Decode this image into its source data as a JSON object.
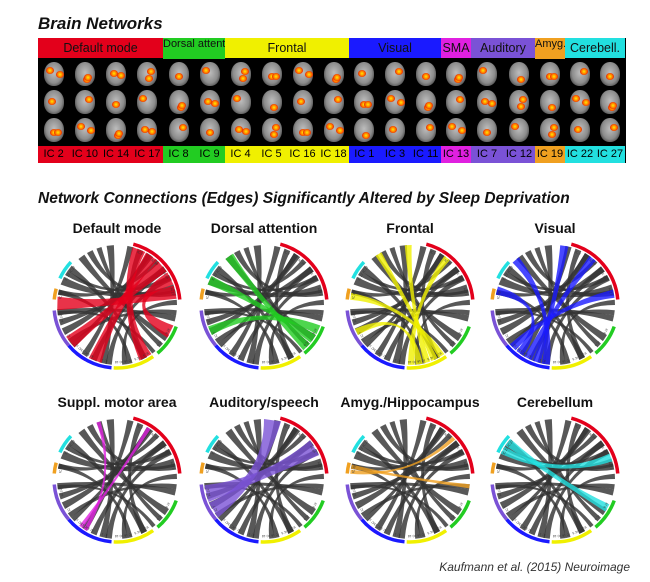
{
  "section_networks": "Brain Networks",
  "section_edges": "Network Connections (Edges) Significantly Altered by Sleep Deprivation",
  "citation": "Kaufmann et al. (2015) Neuroimage",
  "networks": [
    {
      "name": "Default mode",
      "color": "#e3001b",
      "ics": [
        "IC 2",
        "IC 10",
        "IC 14",
        "IC 17"
      ]
    },
    {
      "name": "Dorsal attention",
      "color": "#22cc22",
      "ics": [
        "IC 8",
        "IC 9"
      ]
    },
    {
      "name": "Frontal",
      "color": "#f0f000",
      "ics": [
        "IC 4",
        "IC 5",
        "IC 16",
        "IC 18"
      ]
    },
    {
      "name": "Visual",
      "color": "#1a1aff",
      "ics": [
        "IC 1",
        "IC 3",
        "IC 11"
      ]
    },
    {
      "name": "SMA",
      "color": "#e020e0",
      "ics": [
        "IC 13"
      ]
    },
    {
      "name": "Auditory",
      "color": "#7a52d6",
      "ics": [
        "IC 7",
        "IC 12"
      ]
    },
    {
      "name": "Amyg. Hipp.",
      "color": "#f0a020",
      "ics": [
        "IC 19"
      ]
    },
    {
      "name": "Cerebell.",
      "color": "#22e0e0",
      "ics": [
        "IC 22",
        "IC 27"
      ]
    }
  ],
  "panels": [
    {
      "title": "Default mode",
      "net": 0
    },
    {
      "title": "Dorsal attention",
      "net": 1
    },
    {
      "title": "Frontal",
      "net": 2
    },
    {
      "title": "Visual",
      "net": 3
    },
    {
      "title": "Suppl. motor area",
      "net": 4
    },
    {
      "title": "Auditory/speech",
      "net": 5
    },
    {
      "title": "Amyg./Hippocampus",
      "net": 6
    },
    {
      "title": "Cerebellum",
      "net": 7
    }
  ]
}
